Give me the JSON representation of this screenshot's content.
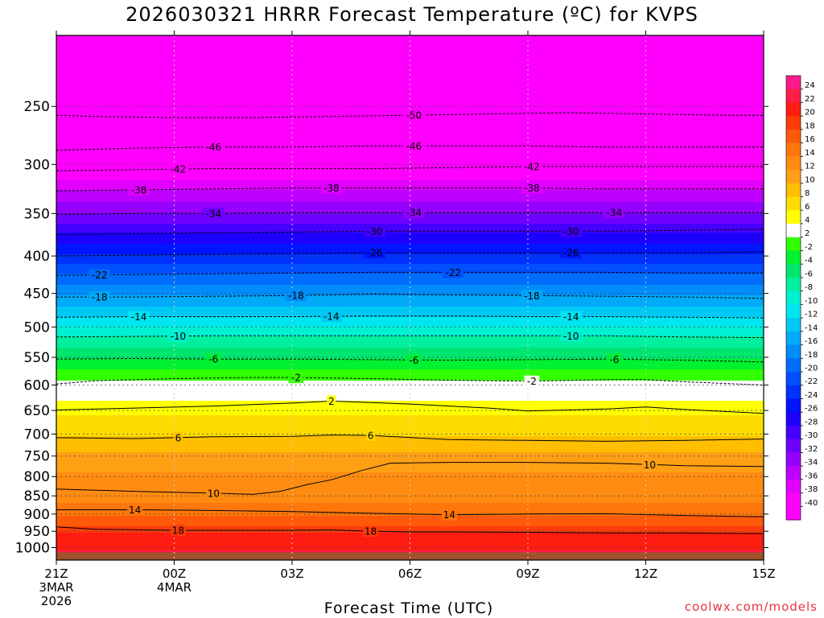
{
  "chart_data": {
    "type": "heatmap",
    "title": "2026030321 HRRR Forecast Temperature (ºC) for KVPS",
    "xlabel": "Forecast Time (UTC)",
    "source": "coolwx.com/models",
    "y_axis": {
      "scale": "log-pressure",
      "range_hPa": [
        200,
        1040
      ],
      "ticks": [
        250,
        300,
        350,
        400,
        450,
        500,
        550,
        600,
        650,
        700,
        750,
        800,
        850,
        900,
        950,
        1000
      ]
    },
    "x_axis": {
      "range_hours": [
        0,
        18
      ],
      "ticks": [
        {
          "hour": 0,
          "lines": [
            "21Z",
            "3MAR",
            "2026"
          ]
        },
        {
          "hour": 3,
          "lines": [
            "00Z",
            "4MAR"
          ]
        },
        {
          "hour": 6,
          "lines": [
            "03Z"
          ]
        },
        {
          "hour": 9,
          "lines": [
            "06Z"
          ]
        },
        {
          "hour": 12,
          "lines": [
            "09Z"
          ]
        },
        {
          "hour": 15,
          "lines": [
            "12Z"
          ]
        },
        {
          "hour": 18,
          "lines": [
            "15Z"
          ]
        }
      ]
    },
    "colorbar": {
      "bands": [
        {
          "from": 22,
          "to": 24,
          "color": "#ff1a8c"
        },
        {
          "from": 20,
          "to": 22,
          "color": "#ff1e48"
        },
        {
          "from": 18,
          "to": 20,
          "color": "#ff1c10"
        },
        {
          "from": 16,
          "to": 18,
          "color": "#ff3c0a"
        },
        {
          "from": 14,
          "to": 16,
          "color": "#ff5a0a"
        },
        {
          "from": 12,
          "to": 14,
          "color": "#ff760a"
        },
        {
          "from": 10,
          "to": 12,
          "color": "#ff8c10"
        },
        {
          "from": 8,
          "to": 10,
          "color": "#ffa014"
        },
        {
          "from": 6,
          "to": 8,
          "color": "#ffbe00"
        },
        {
          "from": 4,
          "to": 6,
          "color": "#ffdc00"
        },
        {
          "from": 2,
          "to": 4,
          "color": "#ffff00"
        },
        {
          "from": -2,
          "to": 2,
          "color": "#ffffff"
        },
        {
          "from": -4,
          "to": -2,
          "color": "#32ff00"
        },
        {
          "from": -6,
          "to": -4,
          "color": "#00f032"
        },
        {
          "from": -8,
          "to": -6,
          "color": "#00e66e"
        },
        {
          "from": -10,
          "to": -8,
          "color": "#00f0a0"
        },
        {
          "from": -12,
          "to": -10,
          "color": "#00f0d2"
        },
        {
          "from": -14,
          "to": -12,
          "color": "#00e6f0"
        },
        {
          "from": -16,
          "to": -14,
          "color": "#00c8f5"
        },
        {
          "from": -18,
          "to": -16,
          "color": "#00aaf8"
        },
        {
          "from": -20,
          "to": -18,
          "color": "#008cfa"
        },
        {
          "from": -22,
          "to": -20,
          "color": "#006efc"
        },
        {
          "from": -24,
          "to": -22,
          "color": "#0050ff"
        },
        {
          "from": -26,
          "to": -24,
          "color": "#0032ff"
        },
        {
          "from": -28,
          "to": -26,
          "color": "#0014ff"
        },
        {
          "from": -30,
          "to": -28,
          "color": "#1e00ff"
        },
        {
          "from": -32,
          "to": -30,
          "color": "#4600ff"
        },
        {
          "from": -34,
          "to": -32,
          "color": "#6e00ff"
        },
        {
          "from": -36,
          "to": -34,
          "color": "#9600ff"
        },
        {
          "from": -38,
          "to": -36,
          "color": "#be00ff"
        },
        {
          "from": -40,
          "to": -38,
          "color": "#e100ff"
        },
        {
          "from": -60,
          "to": -40,
          "color": "#ff00ff"
        }
      ],
      "labels": [
        "24",
        "22",
        "20",
        "18",
        "16",
        "14",
        "12",
        "10",
        "8",
        "6",
        "4",
        "2",
        "-2",
        "-4",
        "-6",
        "-8",
        "-10",
        "-12",
        "-14",
        "-16",
        "-18",
        "-20",
        "-22",
        "-24",
        "-26",
        "-28",
        "-30",
        "-32",
        "-34",
        "-36",
        "-38",
        "-40"
      ]
    },
    "temperature_profile": [
      {
        "p": 200,
        "t": -56
      },
      {
        "p": 250,
        "t": -50
      },
      {
        "p": 285,
        "t": -46
      },
      {
        "p": 305,
        "t": -42
      },
      {
        "p": 325,
        "t": -38
      },
      {
        "p": 350,
        "t": -34
      },
      {
        "p": 372,
        "t": -30
      },
      {
        "p": 398,
        "t": -26
      },
      {
        "p": 423,
        "t": -22
      },
      {
        "p": 453,
        "t": -18
      },
      {
        "p": 484,
        "t": -14
      },
      {
        "p": 515,
        "t": -10
      },
      {
        "p": 553,
        "t": -6
      },
      {
        "p": 580,
        "t": -3
      },
      {
        "p": 592,
        "t": -2
      },
      {
        "p": 612,
        "t": 0
      },
      {
        "p": 630,
        "t": 2
      },
      {
        "p": 660,
        "t": 4
      },
      {
        "p": 705,
        "t": 6
      },
      {
        "p": 760,
        "t": 9
      },
      {
        "p": 790,
        "t": 10
      },
      {
        "p": 850,
        "t": 11
      },
      {
        "p": 905,
        "t": 14
      },
      {
        "p": 935,
        "t": 16
      },
      {
        "p": 955,
        "t": 18
      },
      {
        "p": 1000,
        "t": 19
      },
      {
        "p": 1010,
        "t": 20
      },
      {
        "p": 1040,
        "t": 20
      }
    ],
    "contours": [
      {
        "value": -50,
        "hours": [
          0,
          1,
          3,
          5,
          7,
          9,
          11,
          13,
          15,
          17,
          18
        ],
        "p": [
          257,
          258,
          259,
          259,
          258,
          257,
          256,
          255,
          256,
          257,
          257
        ],
        "labels": [
          {
            "hour": 9.1,
            "text": "-50"
          }
        ]
      },
      {
        "value": -46,
        "hours": [
          0,
          2,
          4,
          6,
          8,
          10,
          12,
          14,
          16,
          18
        ],
        "p": [
          287,
          285,
          284,
          284,
          283,
          283,
          283,
          284,
          284,
          284
        ],
        "labels": [
          {
            "hour": 4,
            "text": "-46"
          },
          {
            "hour": 9.1,
            "text": "-46"
          }
        ]
      },
      {
        "value": -42,
        "hours": [
          0,
          2,
          4,
          6,
          8,
          10,
          12,
          14,
          16,
          18
        ],
        "p": [
          306,
          305,
          304,
          304,
          304,
          303,
          302,
          302,
          302,
          302
        ],
        "labels": [
          {
            "hour": 3.1,
            "text": "-42"
          },
          {
            "hour": 12.1,
            "text": "-42"
          }
        ]
      },
      {
        "value": -38,
        "hours": [
          0,
          2,
          4,
          6,
          8,
          10,
          12,
          14,
          16,
          18
        ],
        "p": [
          326,
          325,
          324,
          323,
          323,
          323,
          323,
          324,
          324,
          324
        ],
        "labels": [
          {
            "hour": 2.1,
            "text": "-38"
          },
          {
            "hour": 7,
            "text": "-38"
          },
          {
            "hour": 12.1,
            "text": "-38"
          }
        ]
      },
      {
        "value": -34,
        "hours": [
          0,
          2,
          4,
          6,
          8,
          10,
          12,
          14,
          16,
          18
        ],
        "p": [
          351,
          350,
          350,
          349,
          349,
          349,
          349,
          349,
          349,
          349
        ],
        "labels": [
          {
            "hour": 4,
            "text": "-34"
          },
          {
            "hour": 9.1,
            "text": "-34"
          },
          {
            "hour": 14.2,
            "text": "-34"
          }
        ]
      },
      {
        "value": -30,
        "hours": [
          0,
          2,
          4,
          6,
          8,
          10,
          12,
          14,
          16,
          18
        ],
        "p": [
          374,
          373,
          372,
          371,
          370,
          370,
          370,
          370,
          369,
          368
        ],
        "labels": [
          {
            "hour": 8.1,
            "text": "-30"
          },
          {
            "hour": 13.1,
            "text": "-30"
          }
        ]
      },
      {
        "value": -26,
        "hours": [
          0,
          2,
          4,
          6,
          8,
          10,
          12,
          14,
          16,
          18
        ],
        "p": [
          400,
          399,
          398,
          397,
          396,
          396,
          396,
          396,
          396,
          395
        ],
        "labels": [
          {
            "hour": 8.1,
            "text": "-26"
          },
          {
            "hour": 13.1,
            "text": "-26"
          }
        ]
      },
      {
        "value": -22,
        "hours": [
          0,
          2,
          4,
          6,
          8,
          10,
          12,
          14,
          16,
          18
        ],
        "p": [
          425,
          424,
          423,
          422,
          421,
          421,
          421,
          421,
          422,
          422
        ],
        "labels": [
          {
            "hour": 1.1,
            "text": "-22"
          },
          {
            "hour": 10.1,
            "text": "-22"
          }
        ]
      },
      {
        "value": -18,
        "hours": [
          0,
          2,
          4,
          6,
          8,
          10,
          12,
          14,
          16,
          18
        ],
        "p": [
          455,
          455,
          454,
          453,
          451,
          452,
          453,
          454,
          455,
          457
        ],
        "labels": [
          {
            "hour": 1.1,
            "text": "-18"
          },
          {
            "hour": 6.1,
            "text": "-18"
          },
          {
            "hour": 12.1,
            "text": "-18"
          }
        ]
      },
      {
        "value": -14,
        "hours": [
          0,
          2,
          4,
          6,
          8,
          10,
          12,
          14,
          16,
          18
        ],
        "p": [
          485,
          484,
          484,
          484,
          483,
          483,
          484,
          484,
          485,
          486
        ],
        "labels": [
          {
            "hour": 2.1,
            "text": "-14"
          },
          {
            "hour": 7,
            "text": "-14"
          },
          {
            "hour": 13.1,
            "text": "-14"
          }
        ]
      },
      {
        "value": -10,
        "hours": [
          0,
          2,
          4,
          6,
          8,
          10,
          12,
          14,
          16,
          18
        ],
        "p": [
          516,
          515,
          514,
          514,
          514,
          514,
          514,
          514,
          516,
          517
        ],
        "labels": [
          {
            "hour": 3.1,
            "text": "-10"
          },
          {
            "hour": 13.1,
            "text": "-10"
          }
        ]
      },
      {
        "value": -6,
        "hours": [
          0,
          2,
          4,
          6,
          8,
          10,
          12,
          14,
          16,
          18
        ],
        "p": [
          553,
          552,
          553,
          553,
          554,
          555,
          554,
          553,
          555,
          558
        ],
        "labels": [
          {
            "hour": 4,
            "text": "-6"
          },
          {
            "hour": 9.1,
            "text": "-6"
          },
          {
            "hour": 14.2,
            "text": "-6"
          }
        ]
      },
      {
        "value": -2,
        "hours": [
          0,
          1,
          3,
          5,
          6,
          8,
          10,
          12,
          14,
          15,
          16,
          18
        ],
        "p": [
          598,
          592,
          588,
          586,
          586,
          588,
          591,
          593,
          590,
          590,
          594,
          600
        ],
        "labels": [
          {
            "hour": 6.1,
            "text": "-2"
          },
          {
            "hour": 12.1,
            "text": "-2"
          }
        ]
      },
      {
        "value": 2,
        "hours": [
          0,
          2,
          4,
          6,
          7,
          9,
          11,
          12,
          14,
          15,
          16,
          18
        ],
        "p": [
          649,
          645,
          641,
          635,
          631,
          637,
          645,
          651,
          647,
          643,
          648,
          656
        ],
        "labels": [
          {
            "hour": 7,
            "text": "2"
          }
        ]
      },
      {
        "value": 6,
        "hours": [
          0,
          2,
          4,
          6,
          7,
          8,
          10,
          12,
          14,
          16,
          18
        ],
        "p": [
          708,
          710,
          706,
          705,
          702,
          703,
          712,
          714,
          716,
          714,
          711
        ],
        "labels": [
          {
            "hour": 3.1,
            "text": "6"
          },
          {
            "hour": 8,
            "text": "6"
          }
        ]
      },
      {
        "value": 10,
        "hours": [
          0,
          2,
          4,
          5,
          5.7,
          6.4,
          7,
          7.8,
          8.5,
          10,
          12,
          14,
          15,
          16,
          18
        ],
        "p": [
          832,
          838,
          843,
          846,
          838,
          820,
          808,
          784,
          767,
          765,
          765,
          767,
          770,
          773,
          775
        ],
        "labels": [
          {
            "hour": 4,
            "text": "10"
          },
          {
            "hour": 15.1,
            "text": "10"
          }
        ]
      },
      {
        "value": 14,
        "hours": [
          0,
          2,
          4,
          6,
          8,
          10,
          12,
          14,
          16,
          18
        ],
        "p": [
          888,
          888,
          890,
          893,
          898,
          902,
          900,
          899,
          904,
          908
        ],
        "labels": [
          {
            "hour": 2,
            "text": "14"
          },
          {
            "hour": 10,
            "text": "14"
          }
        ]
      },
      {
        "value": 18,
        "hours": [
          0,
          1,
          3,
          5,
          6,
          7,
          8,
          9,
          10,
          12,
          14,
          16,
          18
        ],
        "p": [
          937,
          944,
          947,
          947,
          947,
          946,
          950,
          952,
          952,
          953,
          955,
          955,
          957
        ],
        "labels": [
          {
            "hour": 3.1,
            "text": "18"
          },
          {
            "hour": 8,
            "text": "18"
          }
        ]
      }
    ]
  }
}
